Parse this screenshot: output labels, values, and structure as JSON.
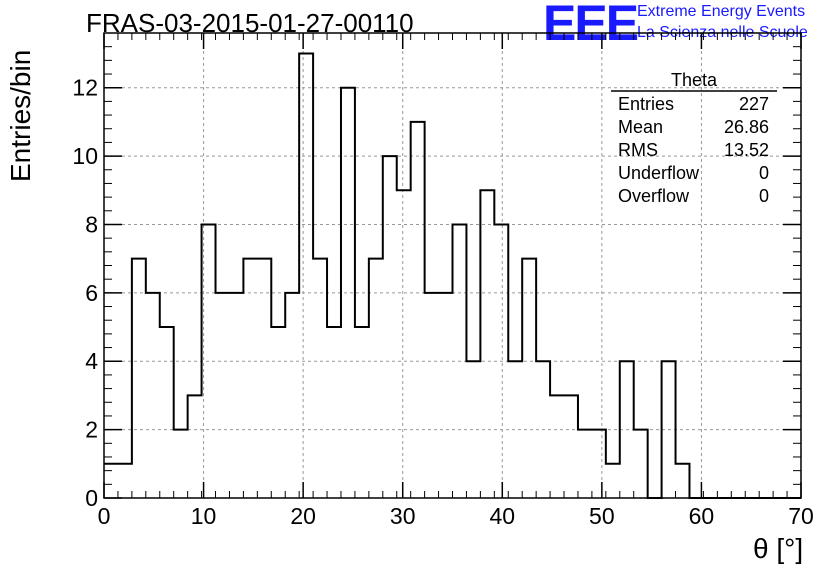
{
  "header": {
    "title": "FRAS-03-2015-01-27-00110",
    "logo_mark": "EEE",
    "logo_line1": "Extreme Energy Events",
    "logo_line2": "La Scienza nelle Scuole"
  },
  "stats": {
    "name": "Theta",
    "rows": [
      {
        "label": "Entries",
        "value": "227"
      },
      {
        "label": "Mean",
        "value": "26.86"
      },
      {
        "label": "RMS",
        "value": "13.52"
      },
      {
        "label": "Underflow",
        "value": "0"
      },
      {
        "label": "Overflow",
        "value": "0"
      }
    ]
  },
  "colors": {
    "logo": "#1a1aff",
    "line": "#000000",
    "grid": "#999999"
  },
  "chart_data": {
    "type": "bar",
    "style": "step-histogram",
    "xlabel": "θ [°]",
    "ylabel": "Entries/bin",
    "xlim": [
      0,
      70
    ],
    "ylim": [
      0,
      13.6
    ],
    "bin_width": 1.4,
    "bin_edges_start": 0,
    "values": [
      1,
      1,
      7,
      6,
      5,
      2,
      3,
      8,
      6,
      6,
      7,
      7,
      5,
      6,
      13,
      7,
      5,
      12,
      5,
      7,
      10,
      9,
      11,
      6,
      6,
      8,
      4,
      9,
      8,
      4,
      7,
      4,
      3,
      3,
      2,
      2,
      1,
      4,
      2,
      0,
      4,
      1,
      0,
      0,
      0,
      0,
      0,
      0,
      0,
      0
    ],
    "x_ticks": [
      0,
      10,
      20,
      30,
      40,
      50,
      60,
      70
    ],
    "y_ticks": [
      0,
      2,
      4,
      6,
      8,
      10,
      12
    ],
    "grid": true
  }
}
